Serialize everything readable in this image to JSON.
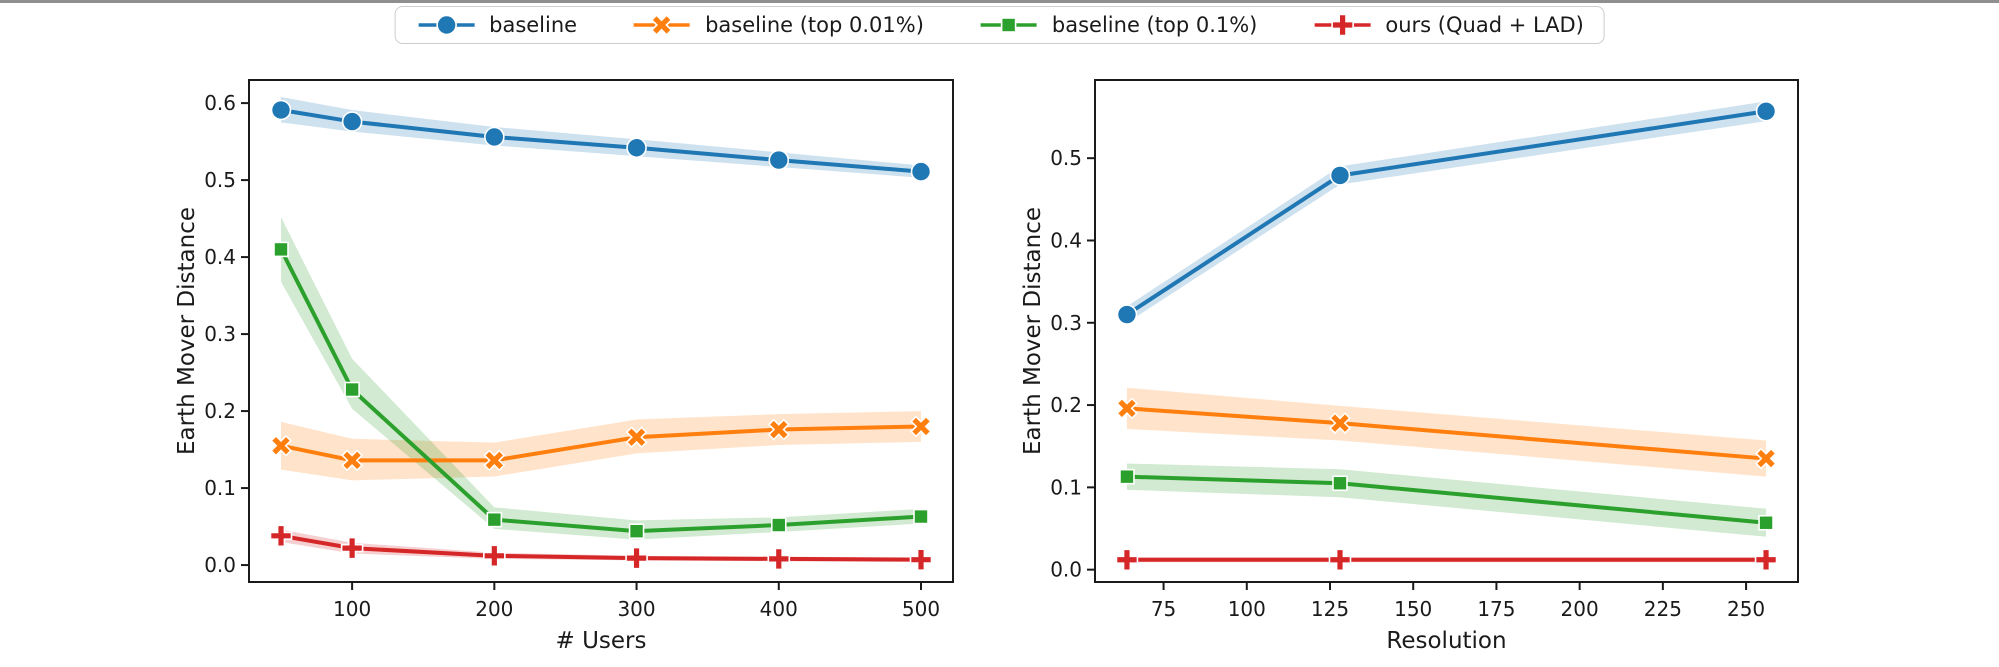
{
  "decor": {
    "top_edge_color": "#8f8f8f"
  },
  "legend": {
    "items": [
      {
        "label": "baseline",
        "color": "#1f77b4",
        "marker": "circle"
      },
      {
        "label": "baseline (top 0.01%)",
        "color": "#ff7f0e",
        "marker": "x"
      },
      {
        "label": "baseline (top 0.1%)",
        "color": "#2ca02c",
        "marker": "square"
      },
      {
        "label": "ours (Quad + LAD)",
        "color": "#d62728",
        "marker": "plus"
      }
    ]
  },
  "chart_data": [
    {
      "type": "line",
      "title": "",
      "xlabel": "# Users",
      "ylabel": "Earth Mover Distance",
      "x": [
        50,
        100,
        200,
        300,
        400,
        500
      ],
      "xlim": [
        27.5,
        522.5
      ],
      "ylim": [
        -0.022,
        0.63
      ],
      "xticks": [
        100,
        200,
        300,
        400,
        500
      ],
      "xtick_labels": [
        "100",
        "200",
        "300",
        "400",
        "500"
      ],
      "yticks": [
        0.0,
        0.1,
        0.2,
        0.3,
        0.4,
        0.5,
        0.6
      ],
      "ytick_labels": [
        "0.0",
        "0.1",
        "0.2",
        "0.3",
        "0.4",
        "0.5",
        "0.6"
      ],
      "grid": false,
      "legend_position": "top-center-shared",
      "series": [
        {
          "name": "baseline",
          "color": "#1f77b4",
          "marker": "circle",
          "values": [
            0.591,
            0.576,
            0.556,
            0.542,
            0.526,
            0.511
          ],
          "band_lo": [
            0.575,
            0.563,
            0.545,
            0.531,
            0.517,
            0.503
          ],
          "band_hi": [
            0.608,
            0.591,
            0.569,
            0.553,
            0.536,
            0.519
          ]
        },
        {
          "name": "baseline (top 0.01%)",
          "color": "#ff7f0e",
          "marker": "x",
          "values": [
            0.155,
            0.136,
            0.136,
            0.166,
            0.176,
            0.18
          ],
          "band_lo": [
            0.124,
            0.11,
            0.115,
            0.145,
            0.156,
            0.16
          ],
          "band_hi": [
            0.186,
            0.164,
            0.159,
            0.189,
            0.196,
            0.2
          ]
        },
        {
          "name": "baseline (top 0.1%)",
          "color": "#2ca02c",
          "marker": "square",
          "values": [
            0.41,
            0.228,
            0.059,
            0.044,
            0.052,
            0.063
          ],
          "band_lo": [
            0.368,
            0.203,
            0.047,
            0.033,
            0.043,
            0.054
          ],
          "band_hi": [
            0.452,
            0.268,
            0.075,
            0.058,
            0.062,
            0.073
          ]
        },
        {
          "name": "ours (Quad + LAD)",
          "color": "#d62728",
          "marker": "plus",
          "values": [
            0.038,
            0.022,
            0.012,
            0.009,
            0.008,
            0.007
          ],
          "band_lo": [
            0.03,
            0.015,
            0.008,
            0.006,
            0.005,
            0.004
          ],
          "band_hi": [
            0.046,
            0.029,
            0.016,
            0.012,
            0.011,
            0.01
          ]
        }
      ]
    },
    {
      "type": "line",
      "title": "",
      "xlabel": "Resolution",
      "ylabel": "Earth Mover Distance",
      "x": [
        64,
        128,
        256
      ],
      "xlim": [
        54.4,
        265.6
      ],
      "ylim": [
        -0.015,
        0.595
      ],
      "xticks": [
        75,
        100,
        125,
        150,
        175,
        200,
        225,
        250
      ],
      "xtick_labels": [
        "75",
        "100",
        "125",
        "150",
        "175",
        "200",
        "225",
        "250"
      ],
      "yticks": [
        0.0,
        0.1,
        0.2,
        0.3,
        0.4,
        0.5
      ],
      "ytick_labels": [
        "0.0",
        "0.1",
        "0.2",
        "0.3",
        "0.4",
        "0.5"
      ],
      "grid": false,
      "legend_position": "top-center-shared",
      "series": [
        {
          "name": "baseline",
          "color": "#1f77b4",
          "marker": "circle",
          "values": [
            0.31,
            0.479,
            0.557
          ],
          "band_lo": [
            0.3,
            0.468,
            0.545
          ],
          "band_hi": [
            0.32,
            0.49,
            0.569
          ]
        },
        {
          "name": "baseline (top 0.01%)",
          "color": "#ff7f0e",
          "marker": "x",
          "values": [
            0.196,
            0.178,
            0.135
          ],
          "band_lo": [
            0.171,
            0.157,
            0.113
          ],
          "band_hi": [
            0.221,
            0.199,
            0.157
          ]
        },
        {
          "name": "baseline (top 0.1%)",
          "color": "#2ca02c",
          "marker": "square",
          "values": [
            0.113,
            0.105,
            0.057
          ],
          "band_lo": [
            0.097,
            0.088,
            0.04
          ],
          "band_hi": [
            0.129,
            0.122,
            0.074
          ]
        },
        {
          "name": "ours (Quad + LAD)",
          "color": "#d62728",
          "marker": "plus",
          "values": [
            0.012,
            0.012,
            0.012
          ],
          "band_lo": [
            0.009,
            0.009,
            0.009
          ],
          "band_hi": [
            0.015,
            0.015,
            0.015
          ]
        }
      ]
    }
  ]
}
